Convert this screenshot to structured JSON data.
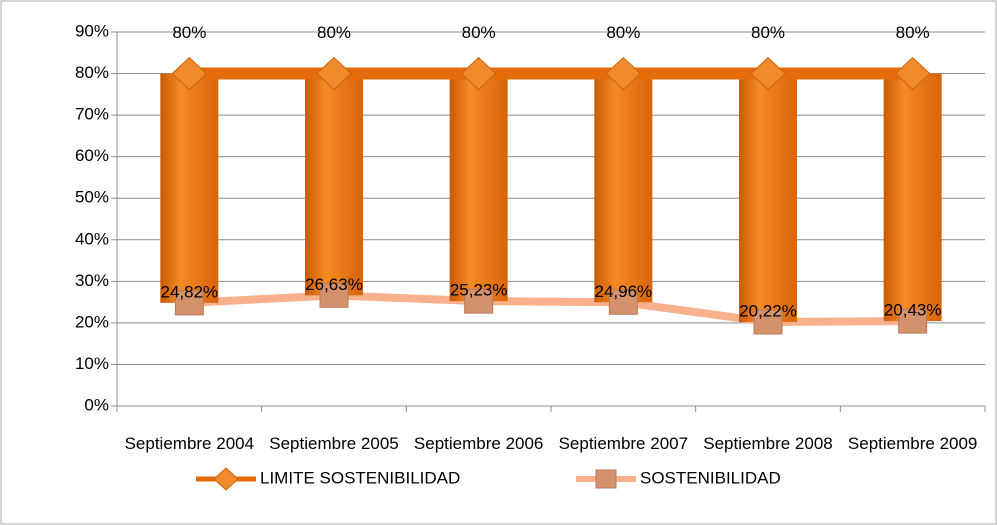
{
  "chart_data": {
    "type": "line",
    "categories": [
      "Septiembre 2004",
      "Septiembre 2005",
      "Septiembre 2006",
      "Septiembre 2007",
      "Septiembre 2008",
      "Septiembre 2009"
    ],
    "series": [
      {
        "name": "LIMITE SOSTENIBILIDAD",
        "color": "#e46c0a",
        "marker_color": "#f08a2c",
        "marker": "diamond",
        "values": [
          80,
          80,
          80,
          80,
          80,
          80
        ],
        "value_labels": [
          "80%",
          "80%",
          "80%",
          "80%",
          "80%",
          "80%"
        ]
      },
      {
        "name": "SOSTENIBILIDAD",
        "color": "#f9b18d",
        "marker_color": "#d4916c",
        "marker": "square",
        "values": [
          24.82,
          26.63,
          25.23,
          24.96,
          20.22,
          20.43
        ],
        "value_labels": [
          "24,82%",
          "26,63%",
          "25,23%",
          "24,96%",
          "20,22%",
          "20,43%"
        ]
      }
    ],
    "updown_bars": true,
    "updown_color": "#ea740f",
    "ylim": [
      0,
      90
    ],
    "yticks": [
      {
        "value": 0,
        "label": "0%"
      },
      {
        "value": 10,
        "label": "10%"
      },
      {
        "value": 20,
        "label": "20%"
      },
      {
        "value": 30,
        "label": "30%"
      },
      {
        "value": 40,
        "label": "40%"
      },
      {
        "value": 50,
        "label": "50%"
      },
      {
        "value": 60,
        "label": "60%"
      },
      {
        "value": 70,
        "label": "70%"
      },
      {
        "value": 80,
        "label": "80%"
      },
      {
        "value": 90,
        "label": "90%"
      }
    ],
    "grid": true,
    "legend": "bottom"
  }
}
